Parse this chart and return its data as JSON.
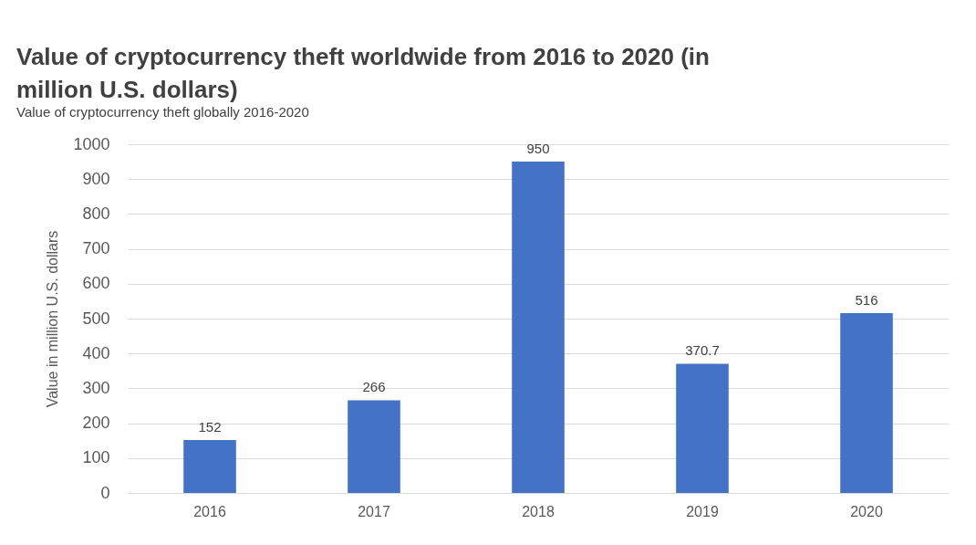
{
  "chart_data": {
    "type": "bar",
    "title": "Value of cryptocurrency theft worldwide from 2016 to 2020 (in million U.S. dollars)",
    "subtitle": "Value of cryptocurrency theft globally 2016-2020",
    "ylabel": "Value in million U.S. dollars",
    "categories": [
      "2016",
      "2017",
      "2018",
      "2019",
      "2020"
    ],
    "values": [
      152,
      266,
      950,
      370.7,
      516
    ],
    "color": "#4472c4",
    "ylim": [
      0,
      1000
    ],
    "yticks": [
      0,
      100,
      200,
      300,
      400,
      500,
      600,
      700,
      800,
      900,
      1000
    ],
    "grid": "y",
    "data_labels": true
  }
}
